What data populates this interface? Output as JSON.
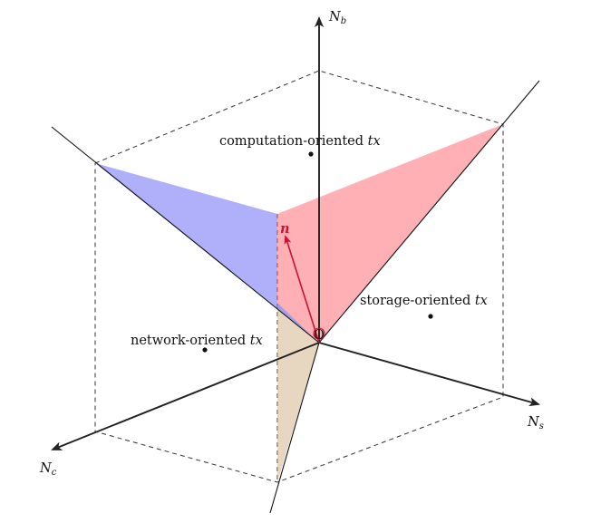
{
  "axes": {
    "nb": {
      "main": "N",
      "sub": "b"
    },
    "ns": {
      "main": "N",
      "sub": "s"
    },
    "nc": {
      "main": "N",
      "sub": "c"
    }
  },
  "origin_label": "O",
  "vector_label": "n",
  "regions": {
    "computation": {
      "text": "computation-oriented ",
      "var": "tx"
    },
    "storage": {
      "text": "storage-oriented ",
      "var": "tx"
    },
    "network": {
      "text": "network-oriented ",
      "var": "tx"
    }
  },
  "colors": {
    "blue_plane": "#6f6ff5",
    "red_plane": "#ff6f78",
    "tan_plane": "#d4b48c",
    "normal_vector": "#cc1133",
    "axis": "#222222"
  }
}
